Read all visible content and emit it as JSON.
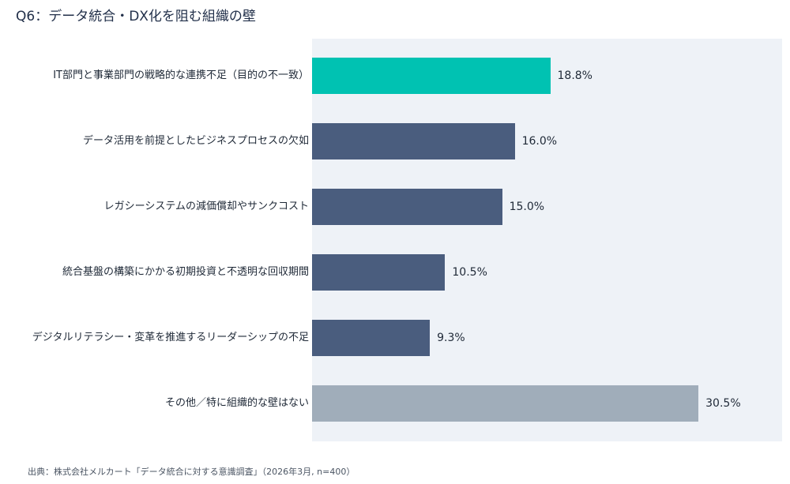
{
  "chart_data": {
    "type": "bar",
    "orientation": "horizontal",
    "title": "Q6：データ統合・DX化を阻む組織の壁",
    "categories": [
      "IT部門と事業部門の戦略的な連携不足（目的の不一致）",
      "データ活用を前提としたビジネスプロセスの欠如",
      "レガシーシステムの減価償却やサンクコスト",
      "統合基盤の構築にかかる初期投資と不透明な回収期間",
      "デジタルリテラシー・変革を推進するリーダーシップの不足",
      "その他／特に組織的な壁はない"
    ],
    "values": [
      18.8,
      16.0,
      15.0,
      10.5,
      9.3,
      30.5
    ],
    "value_labels": [
      "18.8%",
      "16.0%",
      "15.0%",
      "10.5%",
      "9.3%",
      "30.5%"
    ],
    "bar_colors": [
      "#00c2b2",
      "#4a5d7e",
      "#4a5d7e",
      "#4a5d7e",
      "#4a5d7e",
      "#a0adba"
    ],
    "xlim": [
      0,
      37.1
    ],
    "grid": false,
    "legend": "none",
    "xlabel": "",
    "ylabel": ""
  },
  "colors": {
    "highlight": "#00c2b2",
    "primary": "#4a5d7e",
    "other": "#a0adba",
    "plot_background": "#eef2f7"
  },
  "source": "出典：株式会社メルカート「データ統合に対する意識調査」（2026年3月, n=400）"
}
